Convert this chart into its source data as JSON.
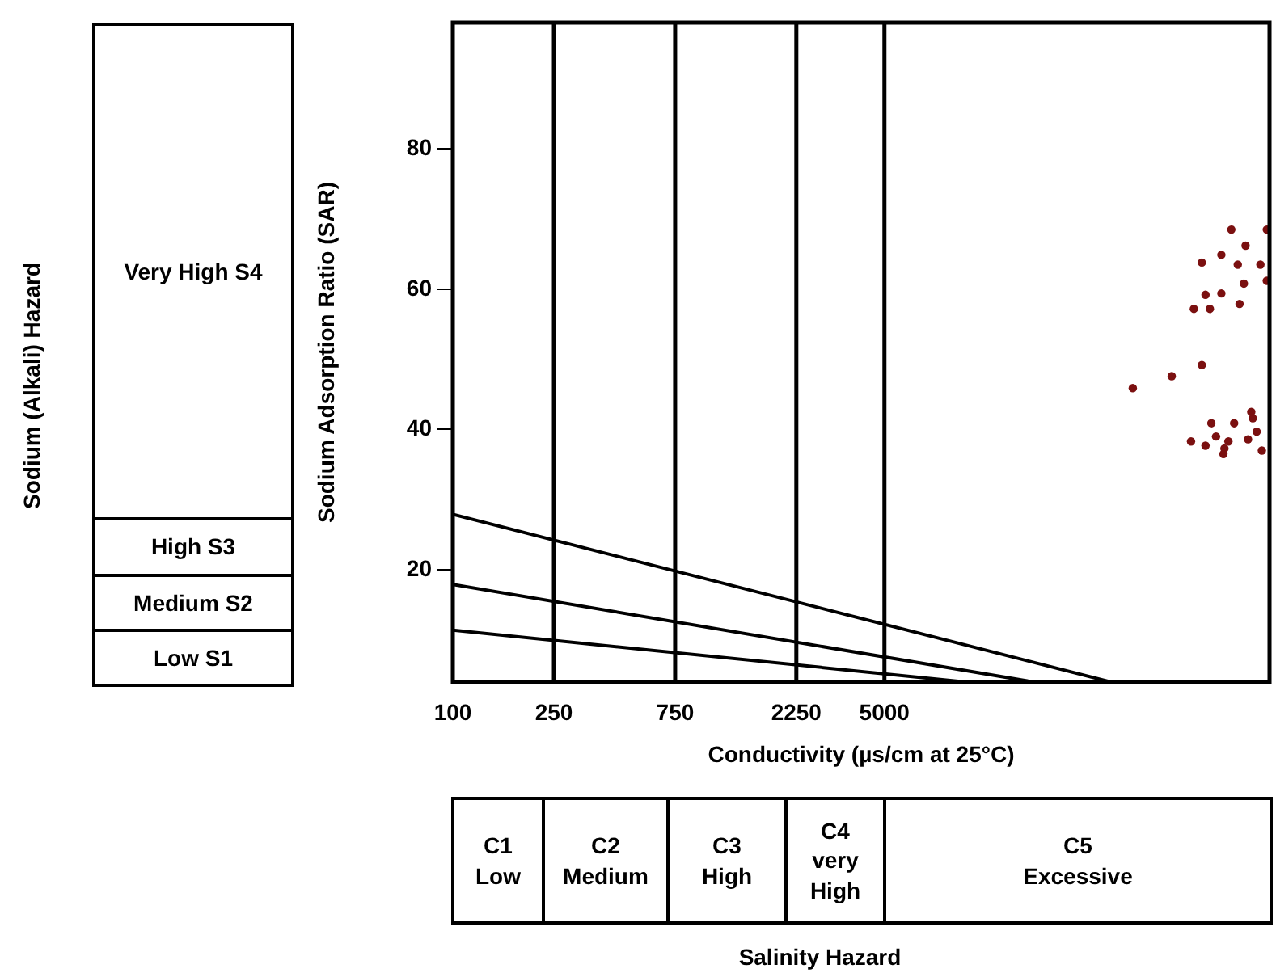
{
  "chart_data": {
    "type": "scatter",
    "xlabel": "Conductivity (µs/cm at 25°C)",
    "ylabel": "Sodium Adsorption Ratio (SAR)",
    "annotations": [
      "Sodium (Alkali) Hazard",
      "Very High S4",
      "High S3",
      "Medium S2",
      "Low S1",
      "C1\nLow",
      "C2\nMedium",
      "C3\nHigh",
      "C4\nvery\nHigh",
      "C5\nExcessive",
      "Salinity Hazard"
    ],
    "log": "x",
    "xlim": [
      100,
      164000
    ],
    "xticks": [
      100,
      250,
      750,
      2250,
      5000
    ],
    "ylim": [
      4,
      98
    ],
    "yticks": [
      20,
      40,
      60,
      80
    ],
    "legend": false,
    "ref_lines": [
      {
        "axis": "x",
        "value": 250,
        "color": "#000000"
      },
      {
        "axis": "x",
        "value": 750,
        "color": "#000000"
      },
      {
        "axis": "x",
        "value": 2250,
        "color": "#000000"
      },
      {
        "axis": "x",
        "value": 5000,
        "color": "#000000"
      }
    ],
    "series": [
      {
        "type": "line",
        "marker": "none",
        "color": "#000000",
        "x": [
          100,
          39000
        ],
        "values": [
          27.9,
          4
        ]
      },
      {
        "type": "line",
        "marker": "none",
        "color": "#000000",
        "x": [
          100,
          19400
        ],
        "values": [
          17.9,
          4
        ]
      },
      {
        "type": "line",
        "marker": "none",
        "color": "#000000",
        "x": [
          100,
          10500
        ],
        "values": [
          11.4,
          4
        ]
      },
      {
        "type": "scatter",
        "marker": "circle",
        "color": "#7b1010",
        "x": [
          116000,
          160000,
          132000,
          106000,
          88800,
          123000,
          151000,
          160000,
          130000,
          91800,
          106000,
          82600,
          95500,
          125000,
          88800,
          67600,
          47500,
          139000,
          141000,
          96800,
          119000,
          146000,
          101000,
          113000,
          80500,
          91800,
          135000,
          109000,
          108000,
          153000
        ],
        "values": [
          68.5,
          68.5,
          66.2,
          64.9,
          63.8,
          63.5,
          63.5,
          61.2,
          60.8,
          59.2,
          59.4,
          57.2,
          57.2,
          57.9,
          49.2,
          47.6,
          45.9,
          42.5,
          41.6,
          40.9,
          40.9,
          39.7,
          39.0,
          38.3,
          38.3,
          37.7,
          38.6,
          37.3,
          36.5,
          37.0
        ]
      }
    ]
  }
}
